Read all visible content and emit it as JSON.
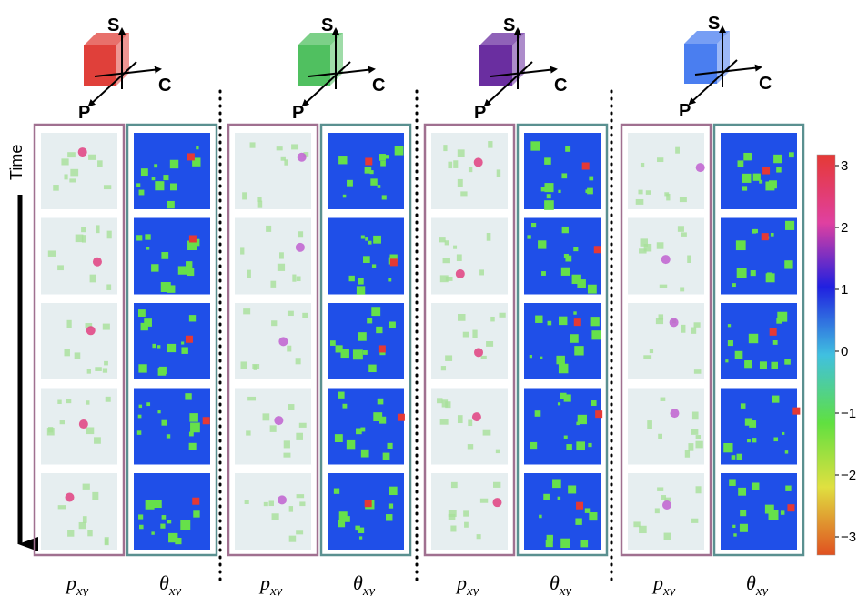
{
  "time_label": "Time",
  "colorbar": {
    "ticks": [
      "3",
      "2",
      "1",
      "0",
      "−1",
      "−2",
      "−3"
    ],
    "colors": [
      "#e53935",
      "#e040a0",
      "#2020e0",
      "#40c0e0",
      "#60e040",
      "#e0e040",
      "#e05020"
    ]
  },
  "background_color": "#1f4fe8",
  "patch_color": "#66e04a",
  "groups": [
    {
      "cube_color": "#e0403a",
      "axes": {
        "s": "S",
        "p": "P",
        "c": "C"
      },
      "columns": [
        {
          "symbol": "p",
          "sub": "xy",
          "border": "#a07090"
        },
        {
          "symbol": "θ",
          "sub": "xy",
          "border": "#5a9090"
        }
      ]
    },
    {
      "cube_color": "#50c060",
      "axes": {
        "s": "S",
        "p": "P",
        "c": "C"
      },
      "columns": [
        {
          "symbol": "p",
          "sub": "xy",
          "border": "#a07090"
        },
        {
          "symbol": "θ",
          "sub": "xy",
          "border": "#5a9090"
        }
      ]
    },
    {
      "cube_color": "#6a2ea0",
      "axes": {
        "s": "S",
        "p": "P",
        "c": "C"
      },
      "columns": [
        {
          "symbol": "p",
          "sub": "xy",
          "border": "#a07090"
        },
        {
          "symbol": "θ",
          "sub": "xy",
          "border": "#5a9090"
        }
      ]
    },
    {
      "cube_color": "#4a7ef0",
      "axes": {
        "s": "S",
        "p": "P",
        "c": "C"
      },
      "columns": [
        {
          "symbol": "p",
          "sub": "xy",
          "border": "#a07090"
        },
        {
          "symbol": "θ",
          "sub": "xy",
          "border": "#5a9090"
        }
      ]
    }
  ]
}
